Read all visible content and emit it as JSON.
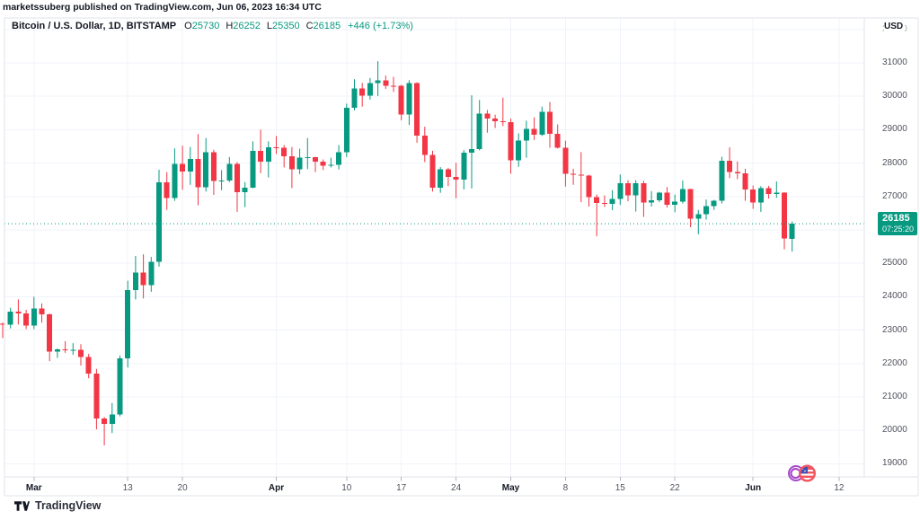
{
  "header": {
    "attribution": "marketssuberg published on TradingView.com, Jun 06, 2023 16:34 UTC"
  },
  "legend": {
    "symbol": "Bitcoin / U.S. Dollar, 1D, BITSTAMP",
    "ohlc": [
      {
        "label": "O",
        "value": "25730"
      },
      {
        "label": "H",
        "value": "26252"
      },
      {
        "label": "L",
        "value": "25350"
      },
      {
        "label": "C",
        "value": "26185"
      }
    ],
    "change": "+446 (+1.73%)"
  },
  "last_price": {
    "value": "26185",
    "countdown": "07:25:20"
  },
  "y_axis": {
    "currency": "USD",
    "ticks": [
      {
        "price": 32000,
        "label": "32000",
        "faint": true
      },
      {
        "price": 31000,
        "label": "31000"
      },
      {
        "price": 30000,
        "label": "30000"
      },
      {
        "price": 29000,
        "label": "29000"
      },
      {
        "price": 28000,
        "label": "28000"
      },
      {
        "price": 27000,
        "label": "27000"
      },
      {
        "price": 26000,
        "label": "26000",
        "hidden": true
      },
      {
        "price": 25000,
        "label": "25000"
      },
      {
        "price": 24000,
        "label": "24000"
      },
      {
        "price": 23000,
        "label": "23000"
      },
      {
        "price": 22000,
        "label": "22000"
      },
      {
        "price": 21000,
        "label": "21000"
      },
      {
        "price": 20000,
        "label": "20000"
      },
      {
        "price": 19000,
        "label": "19000"
      }
    ]
  },
  "x_axis": {
    "ticks": [
      {
        "label": "Mar",
        "index": 4,
        "major": true
      },
      {
        "label": "13",
        "index": 16
      },
      {
        "label": "20",
        "index": 23
      },
      {
        "label": "Apr",
        "index": 35,
        "major": true
      },
      {
        "label": "10",
        "index": 44
      },
      {
        "label": "17",
        "index": 51
      },
      {
        "label": "24",
        "index": 58
      },
      {
        "label": "May",
        "index": 65,
        "major": true
      },
      {
        "label": "8",
        "index": 72
      },
      {
        "label": "15",
        "index": 79
      },
      {
        "label": "22",
        "index": 86
      },
      {
        "label": "Jun",
        "index": 96,
        "major": true
      },
      {
        "label": "12",
        "index": 107
      }
    ]
  },
  "footer": {
    "brand": "TradingView"
  },
  "colors": {
    "up": "#089981",
    "down": "#f23645",
    "grid": "#f0f3fa",
    "frame": "#e0e3eb",
    "tick": "#b2b5be",
    "badge_bg": "#089981",
    "badge_text": "#ffffff",
    "price_line": "#089981",
    "sticker_purple": "#a64ac9",
    "sticker_red": "#f1545e",
    "sticker_blue": "#3f51b5"
  },
  "chart_data": {
    "type": "candlestick",
    "title": "Bitcoin / U.S. Dollar",
    "exchange": "BITSTAMP",
    "interval": "1D",
    "currency": "USD",
    "last_price": 26185,
    "last_bar": {
      "open": 25730,
      "high": 26252,
      "low": 25350,
      "close": 26185,
      "change": 446,
      "change_pct": 1.73
    },
    "y_range": [
      18200,
      32300
    ],
    "grid": true,
    "columns": [
      "date",
      "open",
      "high",
      "low",
      "close"
    ],
    "candles": [
      [
        "2023-02-25",
        23190,
        23230,
        22760,
        23160
      ],
      [
        "2023-02-26",
        23160,
        23670,
        23050,
        23560
      ],
      [
        "2023-02-27",
        23560,
        23920,
        23170,
        23500
      ],
      [
        "2023-02-28",
        23500,
        23610,
        23030,
        23140
      ],
      [
        "2023-03-01",
        23140,
        24000,
        23030,
        23650
      ],
      [
        "2023-03-02",
        23650,
        23800,
        23220,
        23470
      ],
      [
        "2023-03-03",
        23470,
        23500,
        22070,
        22360
      ],
      [
        "2023-03-04",
        22360,
        22450,
        22170,
        22430
      ],
      [
        "2023-03-05",
        22430,
        22670,
        22320,
        22410
      ],
      [
        "2023-03-06",
        22410,
        22610,
        22260,
        22410
      ],
      [
        "2023-03-07",
        22410,
        22580,
        21940,
        22200
      ],
      [
        "2023-03-08",
        22200,
        22290,
        21560,
        21700
      ],
      [
        "2023-03-09",
        21700,
        21840,
        20030,
        20360
      ],
      [
        "2023-03-10",
        20360,
        20400,
        19550,
        20190
      ],
      [
        "2023-03-11",
        20190,
        20820,
        19920,
        20470
      ],
      [
        "2023-03-12",
        20470,
        22240,
        20420,
        22160
      ],
      [
        "2023-03-13",
        22160,
        24480,
        21880,
        24200
      ],
      [
        "2023-03-14",
        24200,
        25220,
        23920,
        24720
      ],
      [
        "2023-03-15",
        24720,
        25270,
        23950,
        24350
      ],
      [
        "2023-03-16",
        24350,
        25190,
        24150,
        25050
      ],
      [
        "2023-03-17",
        25050,
        27800,
        24900,
        27420
      ],
      [
        "2023-03-18",
        27420,
        27730,
        26600,
        26960
      ],
      [
        "2023-03-19",
        26960,
        28440,
        26870,
        27980
      ],
      [
        "2023-03-20",
        27980,
        28520,
        27200,
        27750
      ],
      [
        "2023-03-21",
        27750,
        28480,
        27350,
        28130
      ],
      [
        "2023-03-22",
        28130,
        28870,
        26740,
        27280
      ],
      [
        "2023-03-23",
        27280,
        28750,
        27150,
        28320
      ],
      [
        "2023-03-24",
        28320,
        28400,
        27050,
        27470
      ],
      [
        "2023-03-25",
        27470,
        27790,
        27190,
        27480
      ],
      [
        "2023-03-26",
        27480,
        28180,
        27430,
        27970
      ],
      [
        "2023-03-27",
        27970,
        28030,
        26540,
        27130
      ],
      [
        "2023-03-28",
        27130,
        27430,
        26680,
        27270
      ],
      [
        "2023-03-29",
        27270,
        28650,
        27250,
        28360
      ],
      [
        "2023-03-30",
        28360,
        29000,
        27700,
        28040
      ],
      [
        "2023-03-31",
        28040,
        28650,
        27570,
        28470
      ],
      [
        "2023-04-01",
        28470,
        28810,
        28270,
        28460
      ],
      [
        "2023-04-02",
        28460,
        28540,
        27870,
        28200
      ],
      [
        "2023-04-03",
        28200,
        28480,
        27250,
        27820
      ],
      [
        "2023-04-04",
        27820,
        28430,
        27670,
        28170
      ],
      [
        "2023-04-05",
        28170,
        28750,
        27820,
        28180
      ],
      [
        "2023-04-06",
        28180,
        28190,
        27730,
        28040
      ],
      [
        "2023-04-07",
        28040,
        28110,
        27790,
        27920
      ],
      [
        "2023-04-08",
        27920,
        28160,
        27870,
        27950
      ],
      [
        "2023-04-09",
        27950,
        28540,
        27810,
        28330
      ],
      [
        "2023-04-10",
        28330,
        29780,
        28180,
        29650
      ],
      [
        "2023-04-11",
        29650,
        30510,
        29580,
        30230
      ],
      [
        "2023-04-12",
        30230,
        30400,
        29690,
        30020
      ],
      [
        "2023-04-13",
        30020,
        30550,
        29900,
        30400
      ],
      [
        "2023-04-14",
        30400,
        31050,
        30010,
        30480
      ],
      [
        "2023-04-15",
        30480,
        30620,
        30220,
        30320
      ],
      [
        "2023-04-16",
        30320,
        30580,
        30130,
        30310
      ],
      [
        "2023-04-17",
        30310,
        30340,
        29280,
        29450
      ],
      [
        "2023-04-18",
        29450,
        30480,
        29140,
        30390
      ],
      [
        "2023-04-19",
        30390,
        30420,
        28610,
        28820
      ],
      [
        "2023-04-20",
        28820,
        29090,
        28030,
        28250
      ],
      [
        "2023-04-21",
        28250,
        28370,
        27150,
        27270
      ],
      [
        "2023-04-22",
        27270,
        27880,
        27110,
        27820
      ],
      [
        "2023-04-23",
        27820,
        27860,
        27310,
        27590
      ],
      [
        "2023-04-24",
        27590,
        28010,
        26950,
        27500
      ],
      [
        "2023-04-25",
        27500,
        28390,
        27210,
        28310
      ],
      [
        "2023-04-26",
        28310,
        30030,
        27240,
        28420
      ],
      [
        "2023-04-27",
        28420,
        29890,
        28380,
        29480
      ],
      [
        "2023-04-28",
        29480,
        29590,
        28910,
        29340
      ],
      [
        "2023-04-29",
        29340,
        29450,
        29050,
        29250
      ],
      [
        "2023-04-30",
        29250,
        29960,
        29110,
        29230
      ],
      [
        "2023-05-01",
        29230,
        29330,
        27680,
        28080
      ],
      [
        "2023-05-02",
        28080,
        28890,
        27890,
        28680
      ],
      [
        "2023-05-03",
        28680,
        29270,
        28160,
        29030
      ],
      [
        "2023-05-04",
        29030,
        29370,
        28690,
        28850
      ],
      [
        "2023-05-05",
        28850,
        29690,
        28810,
        29530
      ],
      [
        "2023-05-06",
        29530,
        29830,
        28460,
        28880
      ],
      [
        "2023-05-07",
        28880,
        29160,
        28440,
        28460
      ],
      [
        "2023-05-08",
        28460,
        28670,
        27300,
        27680
      ],
      [
        "2023-05-09",
        27680,
        27830,
        27350,
        27650
      ],
      [
        "2023-05-10",
        27650,
        28330,
        26830,
        27620
      ],
      [
        "2023-05-11",
        27620,
        27650,
        26700,
        26980
      ],
      [
        "2023-05-12",
        26980,
        27060,
        25810,
        26800
      ],
      [
        "2023-05-13",
        26800,
        27030,
        26690,
        26780
      ],
      [
        "2023-05-14",
        26780,
        27190,
        26590,
        26930
      ],
      [
        "2023-05-15",
        26930,
        27660,
        26750,
        27400
      ],
      [
        "2023-05-16",
        27400,
        27490,
        26860,
        27030
      ],
      [
        "2023-05-17",
        27030,
        27490,
        26550,
        27400
      ],
      [
        "2023-05-18",
        27400,
        27470,
        26390,
        26820
      ],
      [
        "2023-05-19",
        26820,
        27160,
        26700,
        26890
      ],
      [
        "2023-05-20",
        26890,
        27140,
        26830,
        27120
      ],
      [
        "2023-05-21",
        27120,
        27280,
        26670,
        26750
      ],
      [
        "2023-05-22",
        26750,
        27060,
        26530,
        26850
      ],
      [
        "2023-05-23",
        26850,
        27480,
        26790,
        27220
      ],
      [
        "2023-05-24",
        27220,
        27230,
        26080,
        26330
      ],
      [
        "2023-05-25",
        26330,
        26600,
        25870,
        26470
      ],
      [
        "2023-05-26",
        26470,
        26910,
        26310,
        26710
      ],
      [
        "2023-05-27",
        26710,
        26900,
        26600,
        26870
      ],
      [
        "2023-05-28",
        26870,
        28190,
        26790,
        28070
      ],
      [
        "2023-05-29",
        28070,
        28470,
        27550,
        27740
      ],
      [
        "2023-05-30",
        27740,
        28050,
        27520,
        27700
      ],
      [
        "2023-05-31",
        27700,
        27830,
        26870,
        27210
      ],
      [
        "2023-06-01",
        27210,
        27330,
        26630,
        26820
      ],
      [
        "2023-06-02",
        26820,
        27310,
        26540,
        27250
      ],
      [
        "2023-06-03",
        27250,
        27320,
        26940,
        27070
      ],
      [
        "2023-06-04",
        27070,
        27450,
        26960,
        27120
      ],
      [
        "2023-06-05",
        27120,
        27130,
        25420,
        25740
      ],
      [
        "2023-06-06",
        25730,
        26252,
        25350,
        26185
      ]
    ]
  }
}
